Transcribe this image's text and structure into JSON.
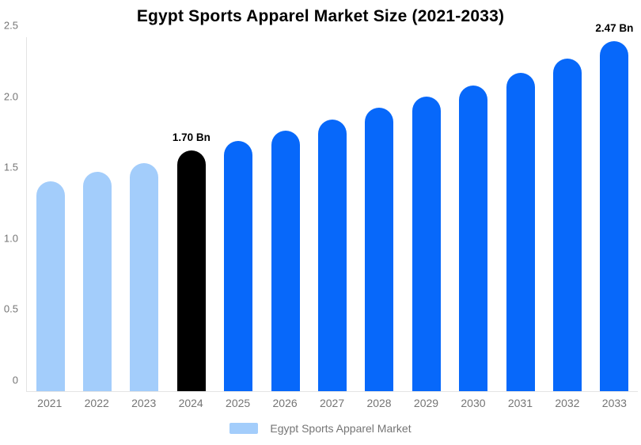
{
  "title": "Egypt Sports Apparel Market Size (2021-2033)",
  "legend": {
    "label": "Egypt Sports Apparel Market",
    "swatch_color": "#A3CDFB"
  },
  "colors": {
    "historical": "#A3CDFB",
    "base_year": "#000000",
    "forecast": "#0768FA",
    "axis_line": "#E4E4E4",
    "tick_text": "#757575",
    "title_text": "#000000"
  },
  "chart_data": {
    "type": "bar",
    "title": "Egypt Sports Apparel Market Size (2021-2033)",
    "unit": "Bn",
    "categories": [
      "2021",
      "2022",
      "2023",
      "2024",
      "2025",
      "2026",
      "2027",
      "2028",
      "2029",
      "2030",
      "2031",
      "2032",
      "2033"
    ],
    "values": [
      1.48,
      1.55,
      1.61,
      1.7,
      1.77,
      1.84,
      1.92,
      2.0,
      2.08,
      2.16,
      2.25,
      2.35,
      2.47
    ],
    "segments": [
      "historical",
      "historical",
      "historical",
      "base_year",
      "forecast",
      "forecast",
      "forecast",
      "forecast",
      "forecast",
      "forecast",
      "forecast",
      "forecast",
      "forecast"
    ],
    "data_labels": [
      null,
      null,
      null,
      "1.70 Bn",
      null,
      null,
      null,
      null,
      null,
      null,
      null,
      null,
      "2.47 Bn"
    ],
    "xlabel": "",
    "ylabel": "",
    "ylim": [
      0,
      2.5
    ],
    "yticks": [
      {
        "label": "0",
        "value": 0
      },
      {
        "label": "0.5",
        "value": 0.5
      },
      {
        "label": "1.0",
        "value": 1.0
      },
      {
        "label": "1.5",
        "value": 1.5
      },
      {
        "label": "2.0",
        "value": 2.0
      },
      {
        "label": "2.5",
        "value": 2.5
      }
    ],
    "grid": false,
    "legend_position": "bottom"
  }
}
